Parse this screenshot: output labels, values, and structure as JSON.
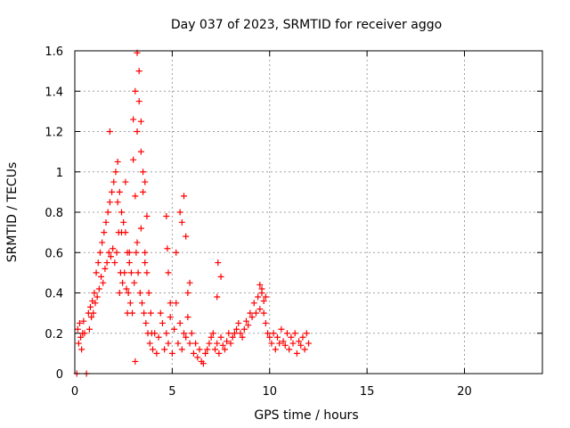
{
  "chart_data": {
    "type": "scatter",
    "title": "Day 037 of 2023, SRMTID for receiver aggo",
    "xlabel": "GPS time / hours",
    "ylabel": "SRMTID / TECUs",
    "xlim": [
      0,
      24
    ],
    "ylim": [
      0,
      1.6
    ],
    "xticks": [
      0,
      5,
      10,
      15,
      20
    ],
    "xtick_labels": [
      "0",
      "5",
      "10",
      "15",
      "20"
    ],
    "yticks": [
      0,
      0.2,
      0.4,
      0.6,
      0.8,
      1,
      1.2,
      1.4,
      1.6
    ],
    "ytick_labels": [
      "0",
      "0.2",
      "0.4",
      "0.6",
      "0.8",
      "1",
      "1.2",
      "1.4",
      "1.6"
    ],
    "grid": true,
    "marker": "plus",
    "color": "#ff0000",
    "series": [
      {
        "name": "SRMTID",
        "x": [
          0.1,
          0.6,
          0.15,
          0.2,
          0.25,
          0.3,
          0.35,
          0.4,
          0.45,
          0.5,
          0.7,
          0.75,
          0.8,
          0.85,
          0.9,
          0.95,
          1.0,
          1.05,
          1.1,
          1.15,
          1.2,
          1.25,
          1.3,
          1.35,
          1.4,
          1.45,
          1.5,
          1.55,
          1.6,
          1.65,
          1.7,
          1.75,
          1.8,
          1.85,
          1.9,
          1.95,
          2.0,
          2.05,
          2.1,
          2.15,
          2.2,
          2.25,
          2.3,
          2.35,
          2.4,
          2.45,
          2.5,
          2.55,
          2.6,
          2.65,
          2.7,
          2.75,
          2.8,
          2.85,
          2.9,
          2.95,
          3.0,
          3.05,
          3.1,
          3.15,
          3.2,
          3.25,
          3.3,
          3.35,
          3.4,
          3.45,
          3.5,
          3.55,
          3.6,
          3.65,
          3.7,
          3.75,
          3.8,
          3.85,
          3.9,
          3.95,
          4.0,
          4.1,
          4.2,
          4.3,
          4.4,
          4.5,
          4.6,
          4.7,
          4.8,
          4.9,
          5.0,
          5.1,
          5.2,
          5.3,
          5.4,
          5.5,
          5.6,
          5.7,
          5.8,
          5.9,
          6.0,
          6.1,
          6.2,
          6.3,
          6.4,
          6.5,
          6.6,
          6.7,
          6.8,
          6.9,
          7.0,
          7.1,
          7.2,
          7.3,
          7.4,
          7.5,
          7.6,
          7.7,
          7.8,
          7.9,
          8.0,
          8.1,
          8.2,
          8.3,
          8.4,
          8.5,
          8.6,
          8.7,
          8.8,
          8.9,
          9.0,
          9.1,
          9.2,
          9.3,
          9.4,
          9.5,
          9.6,
          9.7,
          9.8,
          9.9,
          10.0,
          10.1,
          10.2,
          10.3,
          10.4,
          10.5,
          10.6,
          10.7,
          10.8,
          10.9,
          11.0,
          11.1,
          11.2,
          11.3,
          11.4,
          11.5,
          11.6,
          11.7,
          11.8,
          11.9,
          12.0,
          1.8,
          2.2,
          2.4,
          2.6,
          2.8,
          3.0,
          3.1,
          3.2,
          3.3,
          3.4,
          3.5,
          3.6,
          3.7,
          3.2,
          3.4,
          3.6,
          2.3,
          2.7,
          3.1,
          4.7,
          4.75,
          4.8,
          5.2,
          5.4,
          5.5,
          5.6,
          5.7,
          5.9,
          7.3,
          7.35,
          7.5,
          9.5,
          9.6,
          9.7,
          9.8,
          4.9,
          5.8
        ],
        "y": [
          0.0,
          0.0,
          0.22,
          0.15,
          0.25,
          0.18,
          0.12,
          0.2,
          0.26,
          0.2,
          0.3,
          0.22,
          0.33,
          0.28,
          0.36,
          0.3,
          0.4,
          0.35,
          0.5,
          0.38,
          0.55,
          0.42,
          0.6,
          0.48,
          0.65,
          0.45,
          0.7,
          0.52,
          0.75,
          0.55,
          0.8,
          0.6,
          0.85,
          0.58,
          0.9,
          0.62,
          0.95,
          0.55,
          1.0,
          0.6,
          1.05,
          0.7,
          0.9,
          0.5,
          0.8,
          0.45,
          0.75,
          0.5,
          0.7,
          0.42,
          0.6,
          0.4,
          0.55,
          0.35,
          0.5,
          0.3,
          1.26,
          0.45,
          1.4,
          0.6,
          1.59,
          0.5,
          1.5,
          0.4,
          1.25,
          0.35,
          0.9,
          0.3,
          0.6,
          0.25,
          0.5,
          0.2,
          0.4,
          0.15,
          0.3,
          0.2,
          0.12,
          0.2,
          0.1,
          0.18,
          0.3,
          0.25,
          0.12,
          0.2,
          0.15,
          0.28,
          0.1,
          0.22,
          0.35,
          0.15,
          0.25,
          0.12,
          0.2,
          0.18,
          0.28,
          0.15,
          0.2,
          0.1,
          0.15,
          0.08,
          0.12,
          0.06,
          0.05,
          0.1,
          0.12,
          0.15,
          0.18,
          0.2,
          0.12,
          0.15,
          0.1,
          0.18,
          0.14,
          0.12,
          0.16,
          0.2,
          0.15,
          0.18,
          0.2,
          0.22,
          0.25,
          0.2,
          0.18,
          0.22,
          0.26,
          0.24,
          0.3,
          0.28,
          0.35,
          0.3,
          0.38,
          0.32,
          0.42,
          0.3,
          0.25,
          0.2,
          0.18,
          0.15,
          0.2,
          0.12,
          0.18,
          0.15,
          0.22,
          0.16,
          0.14,
          0.2,
          0.12,
          0.18,
          0.15,
          0.2,
          0.1,
          0.16,
          0.14,
          0.18,
          0.12,
          0.2,
          0.15,
          1.2,
          0.85,
          0.7,
          0.95,
          0.6,
          1.06,
          0.88,
          1.2,
          1.35,
          1.1,
          1.0,
          0.95,
          0.78,
          0.65,
          0.72,
          0.55,
          0.4,
          0.3,
          0.06,
          0.78,
          0.62,
          0.5,
          0.6,
          0.8,
          0.75,
          0.88,
          0.68,
          0.45,
          0.38,
          0.55,
          0.48,
          0.44,
          0.4,
          0.36,
          0.38,
          0.35,
          0.4
        ]
      }
    ]
  }
}
